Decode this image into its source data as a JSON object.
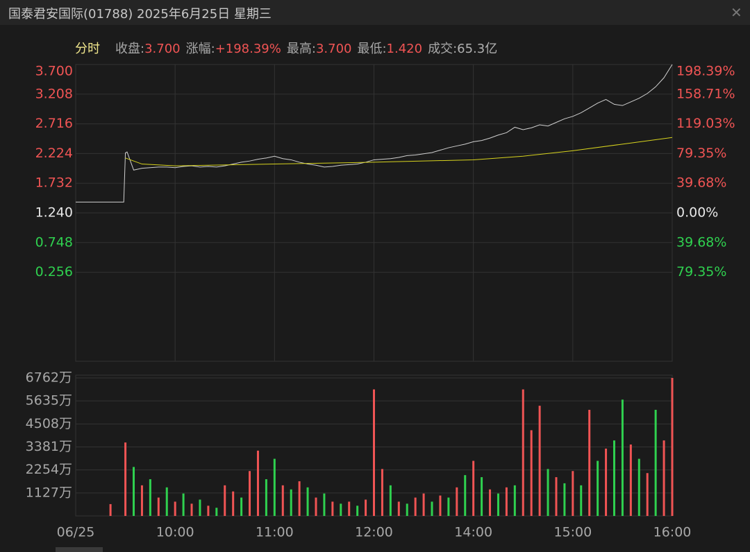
{
  "header": {
    "title": "国泰君安国际(01788) 2025年6月25日 星期三",
    "mode": "分时",
    "stats": [
      {
        "label": "收盘:",
        "value": "3.700",
        "color": "#f05454"
      },
      {
        "label": "涨幅:",
        "value": "+198.39%",
        "color": "#f05454"
      },
      {
        "label": "最高:",
        "value": "3.700",
        "color": "#f05454"
      },
      {
        "label": "最低:",
        "value": "1.420",
        "color": "#f05454"
      },
      {
        "label": "成交:",
        "value": "65.3亿",
        "color": "#b0b0b0"
      }
    ]
  },
  "chart_data": [
    {
      "type": "line",
      "xlim": [
        0,
        360
      ],
      "xticks": [
        {
          "value": 0,
          "label": "06/25"
        },
        {
          "value": 60,
          "label": "10:00"
        },
        {
          "value": 120,
          "label": "11:00"
        },
        {
          "value": 180,
          "label": "12:00"
        },
        {
          "value": 240,
          "label": "14:00"
        },
        {
          "value": 300,
          "label": "15:00"
        },
        {
          "value": 360,
          "label": "16:00"
        }
      ],
      "ylim": [
        -1.22,
        3.7
      ],
      "yticks": [
        {
          "value": 3.7,
          "label": "3.700"
        },
        3.208,
        2.716,
        2.224,
        1.732,
        {
          "value": 1.24,
          "label": "1.240"
        },
        0.748,
        0.256
      ],
      "y2lim": [
        -198.39,
        198.39
      ],
      "y2ticks": [
        {
          "value": 198.39,
          "label": "198.39%"
        },
        {
          "value": 158.71,
          "label": "158.71%"
        },
        {
          "value": 119.03,
          "label": "119.03%"
        },
        {
          "value": 79.35,
          "label": "79.35%"
        },
        {
          "value": 39.68,
          "label": "39.68%"
        },
        {
          "value": 0,
          "label": "0.00%"
        },
        {
          "value": -39.68,
          "label": "39.68%"
        },
        {
          "value": -79.35,
          "label": "79.35%"
        }
      ],
      "grid": true,
      "up_color": "#f05454",
      "down_color": "#2fd14f",
      "flat_color": "#e8e8e8",
      "price": {
        "color": "#d0d0d0",
        "x": [
          0,
          29,
          30,
          31,
          35,
          40,
          45,
          50,
          55,
          60,
          65,
          70,
          75,
          80,
          85,
          90,
          95,
          100,
          105,
          110,
          115,
          120,
          125,
          130,
          135,
          140,
          145,
          150,
          155,
          160,
          165,
          170,
          175,
          180,
          185,
          190,
          195,
          200,
          205,
          210,
          215,
          220,
          225,
          230,
          235,
          240,
          245,
          250,
          255,
          260,
          265,
          270,
          275,
          280,
          285,
          290,
          295,
          300,
          305,
          310,
          315,
          320,
          325,
          330,
          335,
          340,
          345,
          350,
          355,
          360
        ],
        "values": [
          1.42,
          1.42,
          2.235,
          2.25,
          1.95,
          1.98,
          1.99,
          2.0,
          2.0,
          1.99,
          2.01,
          2.02,
          2.0,
          2.01,
          2.0,
          2.02,
          2.05,
          2.08,
          2.1,
          2.13,
          2.15,
          2.18,
          2.14,
          2.12,
          2.08,
          2.05,
          2.03,
          2.0,
          2.01,
          2.03,
          2.04,
          2.05,
          2.08,
          2.12,
          2.13,
          2.14,
          2.16,
          2.19,
          2.2,
          2.22,
          2.24,
          2.28,
          2.32,
          2.35,
          2.38,
          2.42,
          2.44,
          2.48,
          2.53,
          2.57,
          2.66,
          2.62,
          2.65,
          2.7,
          2.68,
          2.74,
          2.8,
          2.84,
          2.9,
          2.98,
          3.06,
          3.12,
          3.04,
          3.02,
          3.08,
          3.14,
          3.22,
          3.33,
          3.48,
          3.7
        ]
      },
      "average": {
        "color": "#d8d41e",
        "x": [
          30,
          40,
          60,
          120,
          180,
          240,
          270,
          300,
          330,
          360
        ],
        "values": [
          2.15,
          2.05,
          2.02,
          2.05,
          2.08,
          2.12,
          2.18,
          2.27,
          2.38,
          2.49
        ]
      }
    },
    {
      "type": "bar",
      "xlim": [
        0,
        360
      ],
      "ylim": [
        0,
        6762
      ],
      "yticks": [
        {
          "value": 6762,
          "label": "6762万"
        },
        {
          "value": 5635,
          "label": "5635万"
        },
        {
          "value": 4508,
          "label": "4508万"
        },
        {
          "value": 3381,
          "label": "3381万"
        },
        {
          "value": 2254,
          "label": "2254万"
        },
        {
          "value": 1127,
          "label": "1127万"
        }
      ],
      "x": [
        21,
        30,
        35,
        40,
        45,
        50,
        55,
        60,
        65,
        70,
        75,
        80,
        85,
        90,
        95,
        100,
        105,
        110,
        115,
        120,
        125,
        130,
        135,
        140,
        145,
        150,
        155,
        160,
        165,
        170,
        175,
        180,
        185,
        190,
        195,
        200,
        205,
        210,
        215,
        220,
        225,
        230,
        235,
        240,
        245,
        250,
        255,
        260,
        265,
        270,
        275,
        280,
        285,
        290,
        295,
        300,
        305,
        310,
        315,
        320,
        325,
        330,
        335,
        340,
        345,
        350,
        355,
        360
      ],
      "values": [
        580,
        3600,
        2400,
        1500,
        1800,
        900,
        1400,
        700,
        1100,
        600,
        800,
        500,
        400,
        1500,
        1200,
        900,
        2200,
        3200,
        1800,
        2800,
        1500,
        1300,
        1700,
        1400,
        900,
        1100,
        700,
        600,
        700,
        500,
        800,
        6200,
        2300,
        1500,
        700,
        600,
        900,
        1100,
        700,
        1000,
        900,
        1400,
        2000,
        2700,
        1900,
        1300,
        1100,
        1400,
        1500,
        6200,
        4200,
        5400,
        2300,
        1900,
        1600,
        2200,
        1500,
        5200,
        2700,
        3300,
        3700,
        5700,
        3500,
        2800,
        2100,
        5200,
        3700,
        6762
      ],
      "colors": [
        "#f05454",
        "#f05454",
        "#2fd14f",
        "#f05454",
        "#2fd14f",
        "#f05454",
        "#2fd14f",
        "#f05454",
        "#2fd14f",
        "#f05454",
        "#2fd14f",
        "#f05454",
        "#2fd14f",
        "#f05454",
        "#f05454",
        "#2fd14f",
        "#f05454",
        "#f05454",
        "#2fd14f",
        "#2fd14f",
        "#f05454",
        "#2fd14f",
        "#f05454",
        "#2fd14f",
        "#f05454",
        "#2fd14f",
        "#f05454",
        "#2fd14f",
        "#f05454",
        "#2fd14f",
        "#f05454",
        "#f05454",
        "#f05454",
        "#2fd14f",
        "#f05454",
        "#2fd14f",
        "#f05454",
        "#f05454",
        "#2fd14f",
        "#f05454",
        "#2fd14f",
        "#f05454",
        "#2fd14f",
        "#f05454",
        "#2fd14f",
        "#f05454",
        "#2fd14f",
        "#f05454",
        "#2fd14f",
        "#f05454",
        "#f05454",
        "#f05454",
        "#2fd14f",
        "#f05454",
        "#2fd14f",
        "#f05454",
        "#2fd14f",
        "#f05454",
        "#2fd14f",
        "#f05454",
        "#2fd14f",
        "#2fd14f",
        "#f05454",
        "#2fd14f",
        "#f05454",
        "#2fd14f",
        "#f05454",
        "#f05454"
      ]
    }
  ]
}
